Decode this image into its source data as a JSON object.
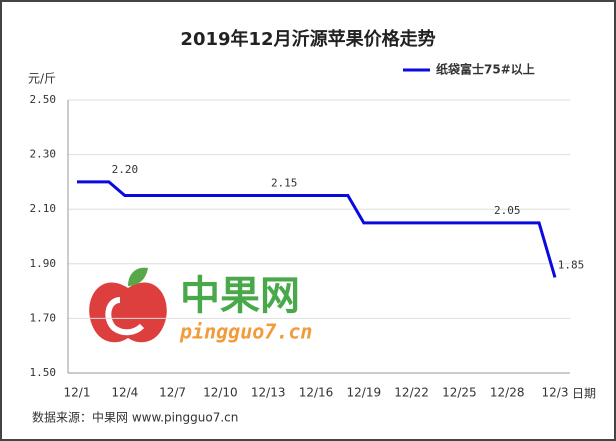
{
  "chart_data": {
    "type": "line",
    "title": "2019年12月沂源苹果价格走势",
    "y_label": "元/斤",
    "x_label": "日期",
    "source": "数据来源：中果网 www.pingguo7.cn",
    "watermark": {
      "name": "中果网",
      "site": "pingguo7.cn"
    },
    "categories": [
      "12/1",
      null,
      null,
      "12/4",
      null,
      null,
      "12/7",
      null,
      null,
      "12/10",
      null,
      null,
      "12/13",
      null,
      null,
      "12/16",
      null,
      null,
      "12/19",
      null,
      null,
      "12/22",
      null,
      null,
      "12/25",
      null,
      null,
      "12/28",
      null,
      null,
      "12/3"
    ],
    "series": [
      {
        "name": "纸袋富士75#以上",
        "color": "#0a0ae0",
        "values": [
          2.2,
          2.2,
          2.2,
          2.15,
          2.15,
          2.15,
          2.15,
          2.15,
          2.15,
          2.15,
          2.15,
          2.15,
          2.15,
          2.15,
          2.15,
          2.15,
          2.15,
          2.15,
          2.05,
          2.05,
          2.05,
          2.05,
          2.05,
          2.05,
          2.05,
          2.05,
          2.05,
          2.05,
          2.05,
          2.05,
          1.85
        ],
        "value_labels": [
          null,
          null,
          "2.20",
          null,
          null,
          null,
          null,
          null,
          null,
          null,
          null,
          null,
          "2.15",
          null,
          null,
          null,
          null,
          null,
          null,
          null,
          null,
          null,
          null,
          null,
          null,
          null,
          "2.05",
          null,
          null,
          null,
          "1.85"
        ]
      }
    ],
    "ylim": [
      1.5,
      2.5
    ],
    "yticks": [
      {
        "value": 1.5,
        "label": "1.50"
      },
      {
        "value": 1.7,
        "label": "1.70"
      },
      {
        "value": 1.9,
        "label": "1.90"
      },
      {
        "value": 2.1,
        "label": "2.10"
      },
      {
        "value": 2.3,
        "label": "2.30"
      },
      {
        "value": 2.5,
        "label": "2.50"
      }
    ],
    "grid": true,
    "legend": "top-right"
  }
}
